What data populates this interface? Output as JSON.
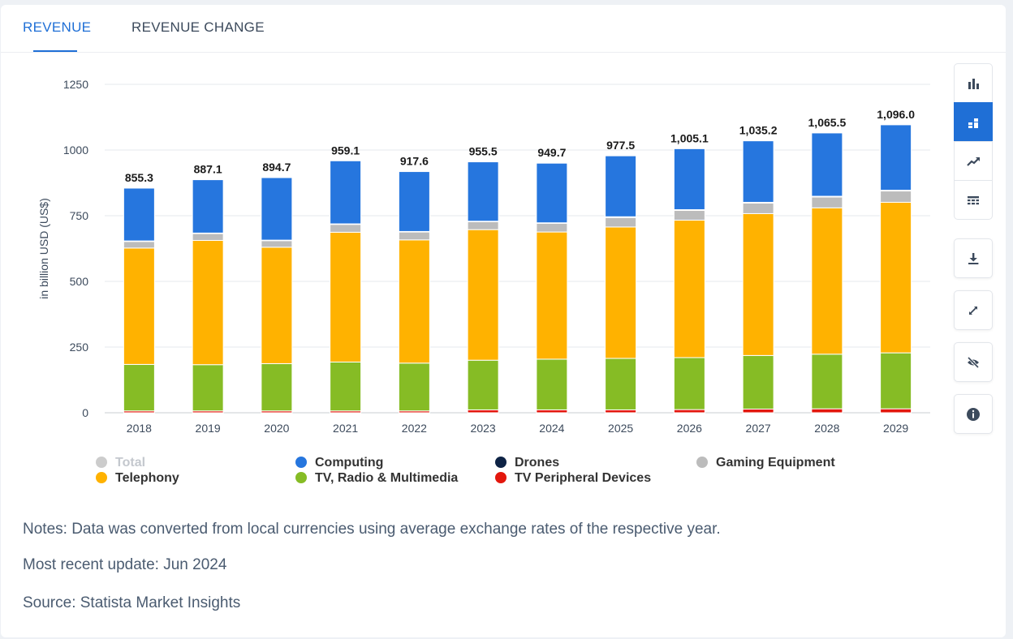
{
  "tabs": [
    {
      "label": "REVENUE",
      "active": true
    },
    {
      "label": "REVENUE CHANGE",
      "active": false
    }
  ],
  "toolbar": [
    {
      "icon": "bar-chart-icon",
      "active": false
    },
    {
      "icon": "stacked-bar-icon",
      "active": true
    },
    {
      "icon": "line-chart-icon",
      "active": false
    },
    {
      "icon": "table-icon",
      "active": false
    },
    {
      "icon": "download-icon",
      "active": false
    },
    {
      "icon": "fullscreen-icon",
      "active": false
    },
    {
      "icon": "hide-icon",
      "active": false
    },
    {
      "icon": "info-icon",
      "active": false
    }
  ],
  "chart_data": {
    "type": "bar",
    "stacked": true,
    "ylabel": "in billion USD (US$)",
    "ylim": [
      0,
      1250
    ],
    "yticks": [
      0,
      250,
      500,
      750,
      1000,
      1250
    ],
    "grid": true,
    "categories": [
      "2018",
      "2019",
      "2020",
      "2021",
      "2022",
      "2023",
      "2024",
      "2025",
      "2026",
      "2027",
      "2028",
      "2029"
    ],
    "total_labels": [
      "855.3",
      "887.1",
      "894.7",
      "959.1",
      "917.6",
      "955.5",
      "949.7",
      "977.5",
      "1,005.1",
      "1,035.2",
      "1,065.5",
      "1,096.0"
    ],
    "series": [
      {
        "name": "TV Peripheral Devices",
        "color": "#e3170d",
        "values": [
          7,
          7,
          7,
          7,
          7,
          11,
          11,
          11,
          12,
          14,
          15,
          15
        ]
      },
      {
        "name": "TV, Radio & Multimedia",
        "color": "#86bc25",
        "values": [
          177,
          176,
          180,
          186,
          182,
          189,
          193,
          196,
          198,
          204,
          208,
          213
        ]
      },
      {
        "name": "Telephony",
        "color": "#ffb200",
        "values": [
          443,
          473,
          443,
          494,
          469,
          497,
          484,
          500,
          523,
          540,
          557,
          573
        ]
      },
      {
        "name": "Gaming Equipment",
        "color": "#bcbcbc",
        "values": [
          25,
          26,
          25,
          30,
          30,
          30,
          33,
          36,
          37,
          40,
          41,
          43
        ]
      },
      {
        "name": "Drones",
        "color": "#0e2345",
        "values": [
          2,
          2,
          2,
          2,
          2,
          2,
          2,
          3,
          3,
          3,
          3,
          3
        ]
      },
      {
        "name": "Computing",
        "color": "#2676de",
        "values": [
          201,
          203,
          238,
          240,
          228,
          226,
          227,
          232,
          232,
          234,
          241,
          249
        ]
      }
    ],
    "legend": {
      "position": "bottom",
      "items": [
        {
          "name": "Total",
          "color": "#cccccc",
          "inactive": true
        },
        {
          "name": "Computing",
          "color": "#2676de"
        },
        {
          "name": "Drones",
          "color": "#0e2345"
        },
        {
          "name": "Gaming Equipment",
          "color": "#bcbcbc"
        },
        {
          "name": "Telephony",
          "color": "#ffb200"
        },
        {
          "name": "TV, Radio & Multimedia",
          "color": "#86bc25"
        },
        {
          "name": "TV Peripheral Devices",
          "color": "#e3170d"
        }
      ]
    }
  },
  "notes": {
    "conversion": "Notes: Data was converted from local currencies using average exchange rates of the respective year.",
    "update": "Most recent update: Jun 2024",
    "source": "Source: Statista Market Insights"
  }
}
